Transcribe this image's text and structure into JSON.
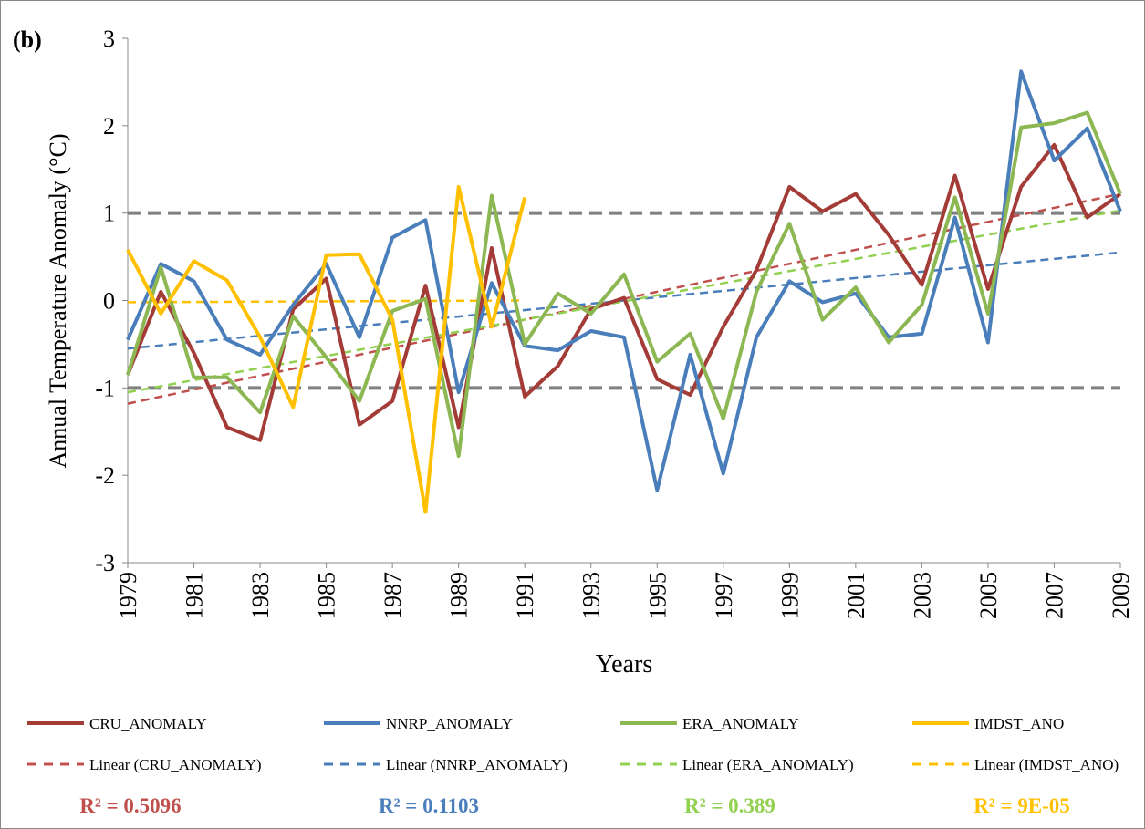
{
  "chart_data": {
    "type": "line",
    "panel_label": "(b)",
    "y_label": "Annual Temperature Anomaly (°C)",
    "x_label": "Years",
    "x": [
      1979,
      1980,
      1981,
      1982,
      1983,
      1984,
      1985,
      1986,
      1987,
      1988,
      1989,
      1990,
      1991,
      1992,
      1993,
      1994,
      1995,
      1996,
      1997,
      1998,
      1999,
      2000,
      2001,
      2002,
      2003,
      2004,
      2005,
      2006,
      2007,
      2008,
      2009
    ],
    "xlim": [
      1979,
      2009
    ],
    "xticks": [
      1979,
      1981,
      1983,
      1985,
      1987,
      1989,
      1991,
      1993,
      1995,
      1997,
      1999,
      2001,
      2003,
      2005,
      2007,
      2009
    ],
    "ylim": [
      -3,
      3
    ],
    "yticks": [
      -3,
      -2,
      -1,
      0,
      1,
      2,
      3
    ],
    "series": [
      {
        "name": "CRU_ANOMALY",
        "color": "#a33b37",
        "values": [
          -0.85,
          0.1,
          -0.6,
          -1.45,
          -1.6,
          -0.1,
          0.25,
          -1.42,
          -1.15,
          0.17,
          -1.45,
          0.6,
          -1.1,
          -0.75,
          -0.1,
          0.03,
          -0.9,
          -1.08,
          -0.3,
          0.35,
          1.3,
          1.02,
          1.22,
          0.75,
          0.18,
          1.43,
          0.13,
          1.3,
          1.78,
          0.95,
          1.22
        ]
      },
      {
        "name": "NNRP_ANOMALY",
        "color": "#4a7ebb",
        "values": [
          -0.45,
          0.42,
          0.22,
          -0.45,
          -0.62,
          -0.05,
          0.42,
          -0.42,
          0.72,
          0.92,
          -1.05,
          0.2,
          -0.52,
          -0.57,
          -0.35,
          -0.42,
          -2.17,
          -0.62,
          -1.98,
          -0.42,
          0.22,
          -0.02,
          0.08,
          -0.42,
          -0.38,
          0.95,
          -0.48,
          2.62,
          1.6,
          1.97,
          1.02
        ]
      },
      {
        "name": "ERA_ANOMALY",
        "color": "#8cb752",
        "values": [
          -0.85,
          0.38,
          -0.88,
          -0.88,
          -1.28,
          -0.18,
          -0.65,
          -1.15,
          -0.12,
          0.02,
          -1.78,
          1.2,
          -0.5,
          0.08,
          -0.15,
          0.3,
          -0.7,
          -0.38,
          -1.35,
          0.1,
          0.88,
          -0.22,
          0.15,
          -0.48,
          -0.05,
          1.18,
          -0.15,
          1.98,
          2.03,
          2.15,
          1.22
        ]
      },
      {
        "name": "IMDST_ANO",
        "color": "#ffc000",
        "values": [
          0.58,
          -0.15,
          0.45,
          0.23,
          -0.42,
          -1.22,
          0.52,
          0.53,
          -0.22,
          -2.42,
          1.3,
          -0.3,
          1.18,
          null,
          null,
          null,
          null,
          null,
          null,
          null,
          null,
          null,
          null,
          null,
          null,
          null,
          null,
          null,
          null,
          null,
          null
        ]
      }
    ],
    "trendlines": [
      {
        "name": "Linear (CRU_ANOMALY)",
        "color": "#c0504d",
        "x": [
          1979,
          2009
        ],
        "values": [
          -1.18,
          1.22
        ]
      },
      {
        "name": "Linear (NNRP_ANOMALY)",
        "color": "#4a7ebb",
        "x": [
          1979,
          2009
        ],
        "values": [
          -0.55,
          0.55
        ]
      },
      {
        "name": "Linear (ERA_ANOMALY)",
        "color": "#92d050",
        "x": [
          1979,
          2009
        ],
        "values": [
          -1.05,
          1.03
        ]
      },
      {
        "name": "Linear (IMDST_ANO)",
        "color": "#ffc000",
        "x": [
          1979,
          1991
        ],
        "values": [
          -0.02,
          0.0
        ]
      }
    ],
    "reference_lines": {
      "color": "#808080",
      "values": [
        1,
        -1
      ]
    },
    "r_squared": [
      {
        "text": "R² = 0.5096",
        "color": "#c0504d"
      },
      {
        "text": "R² = 0.1103",
        "color": "#4a7ebb"
      },
      {
        "text": "R² = 0.389",
        "color": "#92d050"
      },
      {
        "text": "R² = 9E-05",
        "color": "#ffc000"
      }
    ]
  }
}
